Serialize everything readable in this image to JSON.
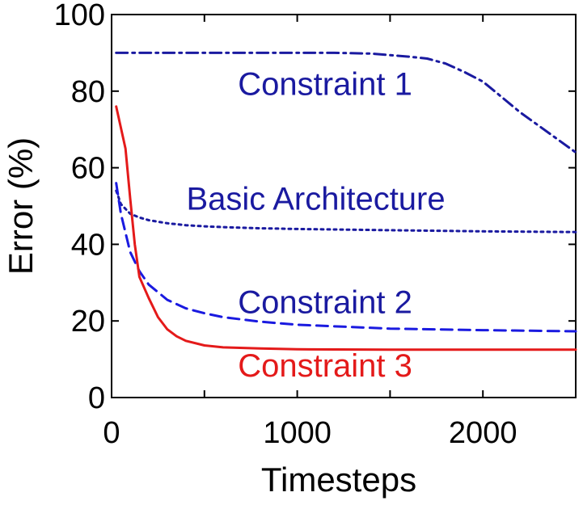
{
  "chart_data": {
    "type": "line",
    "title": "",
    "xlabel": "Timesteps",
    "ylabel": "Error (%)",
    "xlim": [
      0,
      2500
    ],
    "ylim": [
      0,
      100
    ],
    "xticks": [
      "0",
      "1000",
      "2000"
    ],
    "yticks": [
      "0",
      "20",
      "40",
      "60",
      "80",
      "100"
    ],
    "grid": false,
    "series": [
      {
        "name": "Constraint 1",
        "color": "#1a1aa0",
        "dash": "dashdot",
        "x": [
          25,
          200,
          500,
          800,
          1000,
          1200,
          1400,
          1600,
          1700,
          1800,
          1900,
          2000,
          2100,
          2200,
          2300,
          2400,
          2500
        ],
        "y": [
          90,
          90,
          90,
          90,
          90,
          90,
          89.8,
          89,
          88.5,
          87.2,
          85,
          82.5,
          78.5,
          74.5,
          71,
          67.5,
          64
        ]
      },
      {
        "name": "Basic Architecture",
        "color": "#1a1aa0",
        "dash": "dotted",
        "x": [
          25,
          50,
          100,
          150,
          200,
          300,
          400,
          500,
          600,
          800,
          1000,
          1500,
          2000,
          2500
        ],
        "y": [
          54,
          50.5,
          48,
          47,
          46.3,
          45.5,
          45,
          44.7,
          44.5,
          44.2,
          44,
          43.7,
          43.4,
          43.2
        ]
      },
      {
        "name": "Constraint 2",
        "color": "#1a1ae0",
        "dash": "dashed",
        "x": [
          25,
          50,
          100,
          150,
          200,
          300,
          400,
          500,
          600,
          800,
          1000,
          1500,
          2000,
          2500
        ],
        "y": [
          56,
          48,
          38,
          33,
          29.5,
          25.5,
          23.3,
          22,
          21,
          19.8,
          19,
          18,
          17.6,
          17.3
        ]
      },
      {
        "name": "Constraint 3",
        "color": "#e41a1a",
        "dash": "solid",
        "x": [
          25,
          75,
          100,
          125,
          150,
          200,
          250,
          300,
          350,
          400,
          500,
          600,
          800,
          1000,
          1500,
          2000,
          2500
        ],
        "y": [
          76,
          65,
          52,
          40,
          31.5,
          26,
          21,
          17.8,
          16,
          14.8,
          13.6,
          13.1,
          12.8,
          12.6,
          12.5,
          12.5,
          12.5
        ]
      }
    ],
    "annotations": [
      {
        "text": "Constraint 1",
        "series": "Constraint 1",
        "x": 1150,
        "y": 79,
        "color": "#1a1aa0"
      },
      {
        "text": "Basic Architecture",
        "series": "Basic Architecture",
        "x": 1100,
        "y": 49,
        "color": "#1a1aa0"
      },
      {
        "text": "Constraint 2",
        "series": "Constraint 2",
        "x": 1150,
        "y": 22,
        "color": "#1a1aa0"
      },
      {
        "text": "Constraint 3",
        "series": "Constraint 3",
        "x": 1150,
        "y": 5.5,
        "color": "#e41a1a"
      }
    ]
  }
}
